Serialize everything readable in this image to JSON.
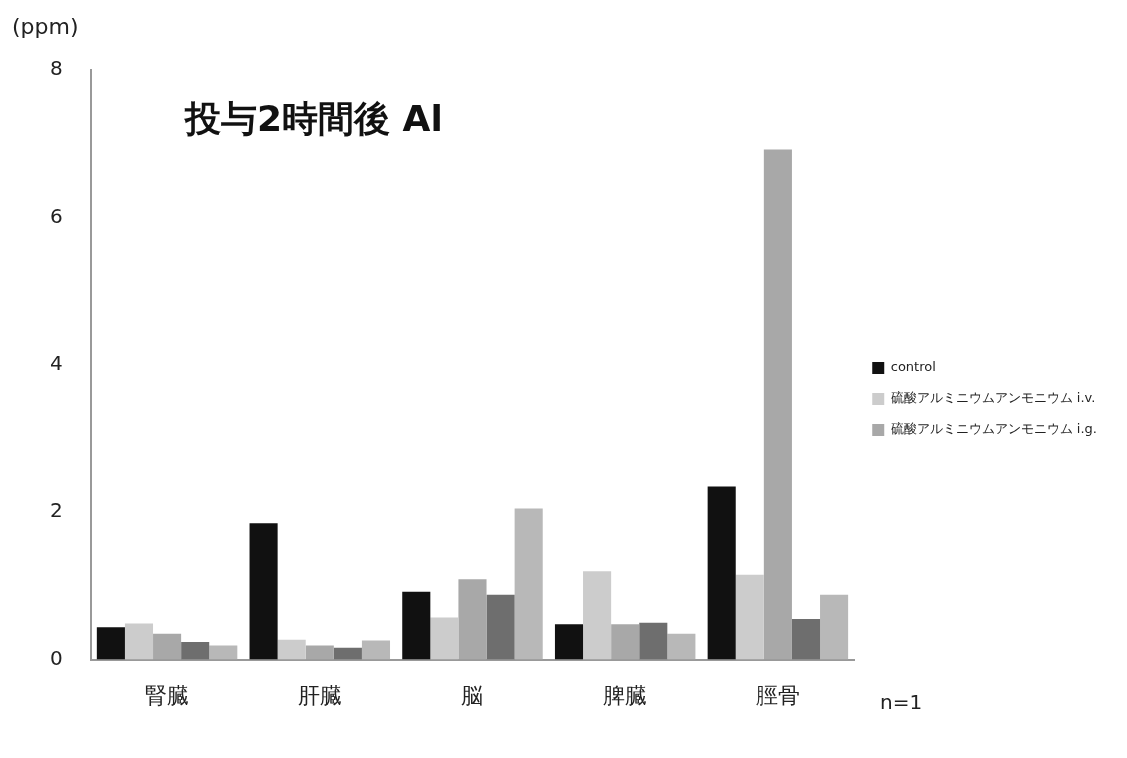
{
  "chart_data": {
    "type": "bar",
    "title": "投与2時間後 Al",
    "ylabel": "(ppm)",
    "categories": [
      "腎臓",
      "肝臓",
      "脳",
      "脾臓",
      "脛骨"
    ],
    "series": [
      {
        "name": "control",
        "color": "#111111",
        "values": [
          0.44,
          1.85,
          0.92,
          0.48,
          2.35
        ]
      },
      {
        "name": "硫酸アルミニウムアンモニウム i.v.",
        "color": "#cccccc",
        "values": [
          0.49,
          0.27,
          0.57,
          1.2,
          1.15
        ]
      },
      {
        "name": "硫酸アルミニウムアンモニウム i.g.",
        "color": "#a8a8a8",
        "values": [
          0.35,
          0.19,
          1.09,
          0.48,
          6.92
        ]
      },
      {
        "color": "#6e6e6e",
        "values": [
          0.24,
          0.16,
          0.88,
          0.5,
          0.55
        ]
      },
      {
        "color": "#b8b8b8",
        "values": [
          0.19,
          0.26,
          2.05,
          0.35,
          0.88
        ]
      }
    ],
    "ylim": [
      0,
      8
    ],
    "yticks": [
      0,
      2,
      4,
      6,
      8
    ],
    "grid": false,
    "legend": "right",
    "annotations": [
      "n=1"
    ]
  }
}
